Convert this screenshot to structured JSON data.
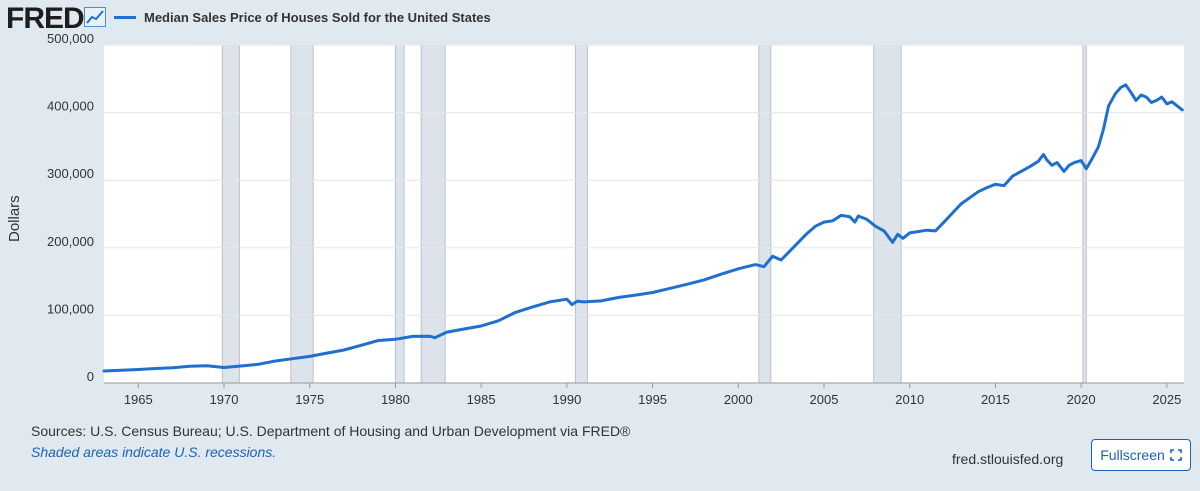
{
  "header": {
    "logo_text": "FRED",
    "logo_icon": "trend-line-icon"
  },
  "chart_data": {
    "type": "line",
    "title": "",
    "xlabel": "",
    "ylabel": "Dollars",
    "ylim": [
      0,
      500000
    ],
    "xlim": [
      1963,
      2026
    ],
    "yticks": [
      {
        "value": 0,
        "label": "0"
      },
      {
        "value": 100000,
        "label": "100,000"
      },
      {
        "value": 200000,
        "label": "200,000"
      },
      {
        "value": 300000,
        "label": "300,000"
      },
      {
        "value": 400000,
        "label": "400,000"
      },
      {
        "value": 500000,
        "label": "500,000"
      }
    ],
    "xticks": [
      {
        "value": 1965,
        "label": "1965"
      },
      {
        "value": 1970,
        "label": "1970"
      },
      {
        "value": 1975,
        "label": "1975"
      },
      {
        "value": 1980,
        "label": "1980"
      },
      {
        "value": 1985,
        "label": "1985"
      },
      {
        "value": 1990,
        "label": "1990"
      },
      {
        "value": 1995,
        "label": "1995"
      },
      {
        "value": 2000,
        "label": "2000"
      },
      {
        "value": 2005,
        "label": "2005"
      },
      {
        "value": 2010,
        "label": "2010"
      },
      {
        "value": 2015,
        "label": "2015"
      },
      {
        "value": 2020,
        "label": "2020"
      },
      {
        "value": 2025,
        "label": "2025"
      }
    ],
    "grid": true,
    "legend": "top-left",
    "line_color": "#1f6fd0",
    "recession_color": "#dde3ea",
    "recessions": [
      [
        1969.9,
        1970.9
      ],
      [
        1973.9,
        1975.2
      ],
      [
        1980.0,
        1980.5
      ],
      [
        1981.5,
        1982.9
      ],
      [
        1990.5,
        1991.2
      ],
      [
        2001.2,
        2001.9
      ],
      [
        2007.9,
        2009.5
      ],
      [
        2020.1,
        2020.3
      ]
    ],
    "series": [
      {
        "name": "Median Sales Price of Houses Sold for the United States",
        "x": [
          1963.0,
          1964.0,
          1965.0,
          1966.0,
          1967.0,
          1968.0,
          1969.0,
          1970.0,
          1971.0,
          1972.0,
          1973.0,
          1974.0,
          1975.0,
          1976.0,
          1977.0,
          1978.0,
          1979.0,
          1980.0,
          1981.0,
          1982.0,
          1982.3,
          1983.0,
          1984.0,
          1985.0,
          1986.0,
          1987.0,
          1988.0,
          1989.0,
          1990.0,
          1990.3,
          1990.6,
          1991.0,
          1992.0,
          1993.0,
          1994.0,
          1995.0,
          1996.0,
          1997.0,
          1998.0,
          1999.0,
          2000.0,
          2001.0,
          2001.5,
          2002.0,
          2002.5,
          2003.0,
          2004.0,
          2004.5,
          2005.0,
          2005.5,
          2006.0,
          2006.5,
          2006.8,
          2007.0,
          2007.5,
          2008.0,
          2008.5,
          2009.0,
          2009.3,
          2009.6,
          2010.0,
          2011.0,
          2011.5,
          2012.0,
          2013.0,
          2014.0,
          2014.5,
          2015.0,
          2015.5,
          2016.0,
          2017.0,
          2017.5,
          2017.8,
          2018.0,
          2018.3,
          2018.6,
          2019.0,
          2019.3,
          2019.6,
          2020.0,
          2020.3,
          2020.6,
          2021.0,
          2021.3,
          2021.6,
          2022.0,
          2022.3,
          2022.6,
          2022.9,
          2023.2,
          2023.5,
          2023.8,
          2024.1,
          2024.4,
          2024.7,
          2025.0,
          2025.3,
          2025.6,
          2025.9
        ],
        "y": [
          17800,
          18800,
          20000,
          21400,
          22700,
          24700,
          25600,
          23000,
          25200,
          27600,
          32500,
          35900,
          39300,
          44200,
          48800,
          55700,
          62900,
          64600,
          68900,
          69300,
          67000,
          75300,
          79900,
          84300,
          92000,
          104500,
          112500,
          120000,
          124000,
          116000,
          121000,
          120000,
          121500,
          126500,
          130000,
          133900,
          140000,
          146000,
          152500,
          161000,
          169000,
          175200,
          172000,
          187600,
          182000,
          195000,
          221000,
          232000,
          238000,
          240000,
          248000,
          246000,
          238000,
          247000,
          242000,
          232000,
          225000,
          208000,
          220000,
          214000,
          222000,
          226000,
          225000,
          238000,
          265000,
          283000,
          289000,
          294000,
          292000,
          306000,
          320000,
          328000,
          338000,
          330000,
          322000,
          326000,
          313000,
          322000,
          326000,
          329000,
          317000,
          330000,
          349000,
          375000,
          410000,
          428000,
          437000,
          441000,
          430000,
          418000,
          426000,
          423000,
          415000,
          418000,
          423000,
          413000,
          416000,
          410000,
          404000
        ]
      }
    ]
  },
  "footer": {
    "sources": "Sources: U.S. Census Bureau; U.S. Department of Housing and Urban Development via FRED®",
    "note": "Shaded areas indicate U.S. recessions.",
    "site": "fred.stlouisfed.org",
    "fullscreen_label": "Fullscreen"
  }
}
